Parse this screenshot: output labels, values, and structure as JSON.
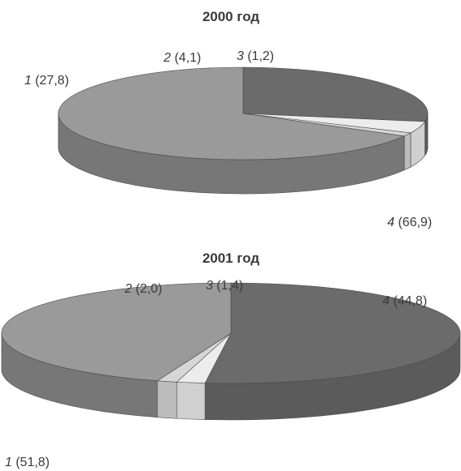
{
  "chart_data": [
    {
      "type": "pie",
      "title": "2000 год",
      "slices": [
        {
          "label": "1",
          "value": 27.8,
          "value_text": "(27,8)",
          "color": "#6b6b6b",
          "side_color": "#5b5b5b"
        },
        {
          "label": "2",
          "value": 4.1,
          "value_text": "(4,1)",
          "color": "#ececec",
          "side_color": "#d0d0d0"
        },
        {
          "label": "3",
          "value": 1.2,
          "value_text": "(1,2)",
          "color": "#d6d6d6",
          "side_color": "#bcbcbc"
        },
        {
          "label": "4",
          "value": 66.9,
          "value_text": "(66,9)",
          "color": "#9a9a9a",
          "side_color": "#777777"
        }
      ]
    },
    {
      "type": "pie",
      "title": "2001 год",
      "slices": [
        {
          "label": "1",
          "value": 51.8,
          "value_text": "(51,8)",
          "color": "#6b6b6b",
          "side_color": "#5b5b5b"
        },
        {
          "label": "2",
          "value": 2.0,
          "value_text": "(2,0)",
          "color": "#ececec",
          "side_color": "#d0d0d0"
        },
        {
          "label": "3",
          "value": 1.4,
          "value_text": "(1,4)",
          "color": "#d6d6d6",
          "side_color": "#bcbcbc"
        },
        {
          "label": "4",
          "value": 44.8,
          "value_text": "(44,8)",
          "color": "#9a9a9a",
          "side_color": "#777777"
        }
      ]
    }
  ]
}
